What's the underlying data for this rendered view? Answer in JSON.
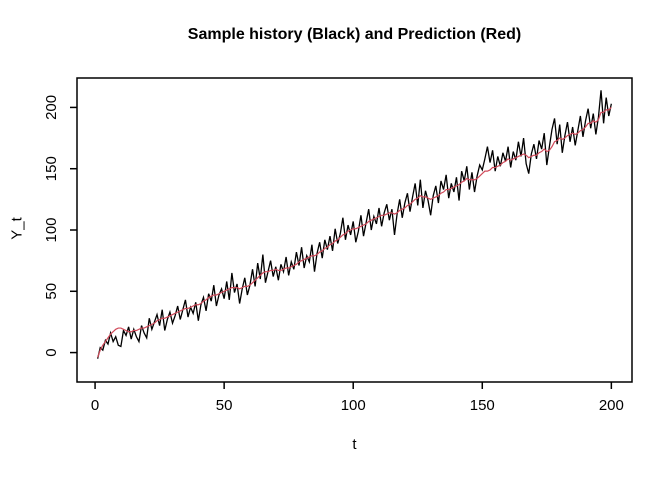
{
  "chart_data": {
    "type": "line",
    "title": "Sample history (Black) and Prediction (Red)",
    "xlabel": "t",
    "ylabel": "Y_t",
    "x_ticks": [
      0,
      50,
      100,
      150,
      200
    ],
    "y_ticks": [
      0,
      50,
      100,
      150,
      200
    ],
    "xlim": [
      -7,
      208
    ],
    "ylim": [
      -24,
      224
    ],
    "grid": false,
    "legend": "in title",
    "background_color": "#ffffff",
    "axis_color": "#000000",
    "x_start": 1,
    "x_step": 1,
    "series": [
      {
        "name": "Sample history",
        "color": "#000000",
        "values": [
          -5,
          4,
          2,
          10,
          7,
          16,
          9,
          13,
          6,
          5,
          18,
          14,
          21,
          11,
          19,
          13,
          9,
          22,
          16,
          12,
          28,
          19,
          25,
          31,
          22,
          35,
          18,
          27,
          33,
          24,
          30,
          38,
          27,
          35,
          43,
          29,
          37,
          32,
          41,
          26,
          39,
          45,
          34,
          48,
          42,
          55,
          38,
          47,
          52,
          44,
          58,
          43,
          65,
          49,
          56,
          40,
          52,
          61,
          47,
          55,
          68,
          54,
          73,
          60,
          80,
          57,
          66,
          75,
          62,
          70,
          59,
          72,
          66,
          78,
          63,
          74,
          68,
          82,
          71,
          86,
          69,
          79,
          74,
          88,
          66,
          81,
          90,
          77,
          92,
          84,
          95,
          83,
          101,
          89,
          97,
          110,
          92,
          104,
          96,
          107,
          90,
          99,
          112,
          95,
          106,
          117,
          100,
          111,
          105,
          118,
          103,
          114,
          121,
          108,
          117,
          96,
          113,
          125,
          110,
          122,
          130,
          115,
          127,
          138,
          120,
          141,
          118,
          132,
          124,
          112,
          128,
          136,
          122,
          140,
          133,
          145,
          126,
          138,
          131,
          143,
          124,
          148,
          140,
          152,
          133,
          147,
          131,
          144,
          153,
          149,
          158,
          168,
          155,
          165,
          148,
          160,
          152,
          163,
          156,
          168,
          151,
          164,
          157,
          172,
          160,
          175,
          154,
          146,
          162,
          170,
          158,
          173,
          166,
          179,
          153,
          168,
          182,
          191,
          170,
          186,
          163,
          177,
          188,
          172,
          184,
          169,
          181,
          193,
          176,
          189,
          199,
          183,
          195,
          178,
          192,
          214,
          187,
          208,
          193,
          203
        ]
      },
      {
        "name": "Prediction",
        "color": "#d04a5a",
        "values": [
          -4,
          2,
          6,
          9,
          12,
          15,
          17,
          19,
          20,
          20,
          19,
          18,
          17,
          17,
          18,
          18,
          19,
          20,
          20,
          21,
          22,
          23,
          24,
          26,
          27,
          28,
          28,
          29,
          30,
          31,
          32,
          33,
          34,
          35,
          36,
          36,
          37,
          38,
          39,
          39,
          40,
          42,
          43,
          45,
          46,
          47,
          47,
          48,
          49,
          50,
          51,
          52,
          53,
          53,
          53,
          52,
          53,
          54,
          54,
          55,
          57,
          59,
          61,
          63,
          65,
          66,
          66,
          67,
          67,
          68,
          67,
          67,
          68,
          69,
          69,
          70,
          71,
          72,
          74,
          75,
          76,
          77,
          78,
          79,
          79,
          80,
          82,
          83,
          85,
          86,
          88,
          89,
          91,
          92,
          94,
          96,
          97,
          99,
          100,
          101,
          101,
          102,
          103,
          104,
          105,
          107,
          108,
          109,
          110,
          111,
          112,
          112,
          113,
          114,
          114,
          113,
          114,
          116,
          117,
          118,
          120,
          121,
          123,
          125,
          126,
          128,
          127,
          127,
          126,
          125,
          126,
          127,
          128,
          130,
          131,
          133,
          133,
          134,
          135,
          136,
          137,
          139,
          140,
          142,
          141,
          141,
          141,
          142,
          144,
          146,
          148,
          148,
          149,
          151,
          151,
          152,
          153,
          155,
          156,
          158,
          157,
          158,
          159,
          160,
          161,
          162,
          161,
          159,
          160,
          161,
          161,
          163,
          164,
          166,
          164,
          165,
          168,
          172,
          173,
          175,
          174,
          175,
          177,
          178,
          179,
          178,
          179,
          181,
          182,
          184,
          187,
          187,
          189,
          188,
          190,
          196,
          196,
          198,
          198,
          200
        ]
      }
    ]
  }
}
